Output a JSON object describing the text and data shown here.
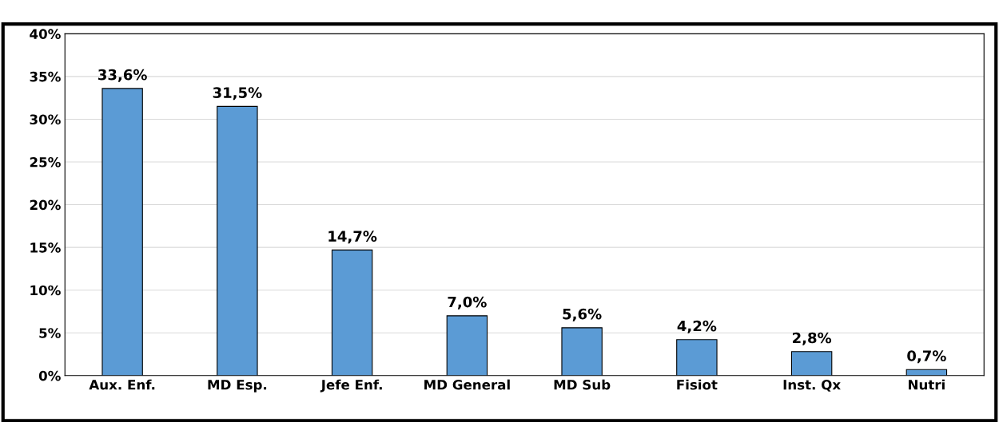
{
  "chart_data": {
    "type": "bar",
    "categories": [
      "Aux. Enf.",
      "MD Esp.",
      "Jefe Enf.",
      "MD General",
      "MD Sub",
      "Fisiot",
      "Inst. Qx",
      "Nutri"
    ],
    "values": [
      33.6,
      31.5,
      14.7,
      7.0,
      5.6,
      4.2,
      2.8,
      0.7
    ],
    "value_labels": [
      "33,6%",
      "31,5%",
      "14,7%",
      "7,0%",
      "5,6%",
      "4,2%",
      "2,8%",
      "0,7%"
    ],
    "color": "#5b9bd5",
    "ylim": [
      0,
      40
    ],
    "yticks": [
      {
        "value": 0,
        "label": "0%"
      },
      {
        "value": 5,
        "label": "5%"
      },
      {
        "value": 10,
        "label": "10%"
      },
      {
        "value": 15,
        "label": "15%"
      },
      {
        "value": 20,
        "label": "20%"
      },
      {
        "value": 25,
        "label": "25%"
      },
      {
        "value": 30,
        "label": "30%"
      },
      {
        "value": 35,
        "label": "35%"
      },
      {
        "value": 40,
        "label": "40%"
      }
    ],
    "grid": "y"
  }
}
